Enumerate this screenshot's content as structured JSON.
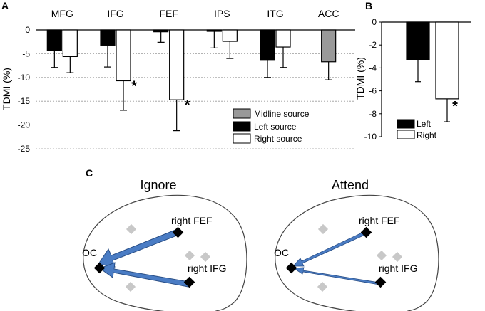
{
  "panels": {
    "A": {
      "label": "A",
      "chart_data": {
        "type": "bar",
        "ylabel": "TDMI (%)",
        "ylim": [
          -25,
          0
        ],
        "yticks": [
          0,
          -5,
          -10,
          -15,
          -20,
          -25
        ],
        "grid": true,
        "categories": [
          "MFG",
          "IFG",
          "FEF",
          "IPS",
          "ITG",
          "ACC"
        ],
        "series": [
          {
            "name": "Left source",
            "color": "#000000",
            "values": [
              -4.3,
              -3.2,
              -0.4,
              -0.3,
              -6.4,
              null
            ],
            "errors": [
              3.6,
              4.6,
              2.2,
              3.5,
              3.6,
              null
            ]
          },
          {
            "name": "Right source",
            "color": "#ffffff",
            "values": [
              -5.6,
              -10.7,
              -14.7,
              -2.4,
              -3.6,
              null
            ],
            "errors": [
              3.4,
              6.2,
              6.5,
              3.6,
              4.3,
              null
            ]
          },
          {
            "name": "Midline source",
            "color": "#999999",
            "values": [
              null,
              null,
              null,
              null,
              null,
              -6.7
            ],
            "errors": [
              null,
              null,
              null,
              null,
              null,
              3.8
            ]
          }
        ],
        "significance": [
          {
            "category": "IFG",
            "series": "Right source",
            "mark": "*"
          },
          {
            "category": "FEF",
            "series": "Right source",
            "mark": "*"
          }
        ],
        "legend": {
          "placement": "bottom-right",
          "entries": [
            "Midline source",
            "Left source",
            "Right source"
          ]
        }
      }
    },
    "B": {
      "label": "B",
      "chart_data": {
        "type": "bar",
        "ylabel": "TDMI (%)",
        "ylim": [
          -10,
          0
        ],
        "yticks": [
          0,
          -2,
          -4,
          -6,
          -8,
          -10
        ],
        "grid": false,
        "categories": [
          "Left",
          "Right"
        ],
        "values": [
          -3.3,
          -6.7
        ],
        "errors": [
          1.9,
          2.0
        ],
        "colors": [
          "#000000",
          "#ffffff"
        ],
        "significance": [
          {
            "category": "Right",
            "mark": "*"
          }
        ],
        "legend": {
          "placement": "bottom-left",
          "entries": [
            "Left",
            "Right"
          ]
        }
      }
    },
    "C": {
      "label": "C",
      "diagrams": [
        {
          "title": "Ignore",
          "labels": {
            "fef": "right FEF",
            "ifg": "right IFG",
            "oc": "OC"
          },
          "strength": "strong"
        },
        {
          "title": "Attend",
          "labels": {
            "fef": "right FEF",
            "ifg": "right IFG",
            "oc": "OC"
          },
          "strength": "weak"
        }
      ],
      "colors": {
        "arrow_fill": "#4a7cc4",
        "arrow_stroke": "#2a4f86",
        "node": "#000000",
        "marker": "#c8c8c8"
      }
    }
  }
}
